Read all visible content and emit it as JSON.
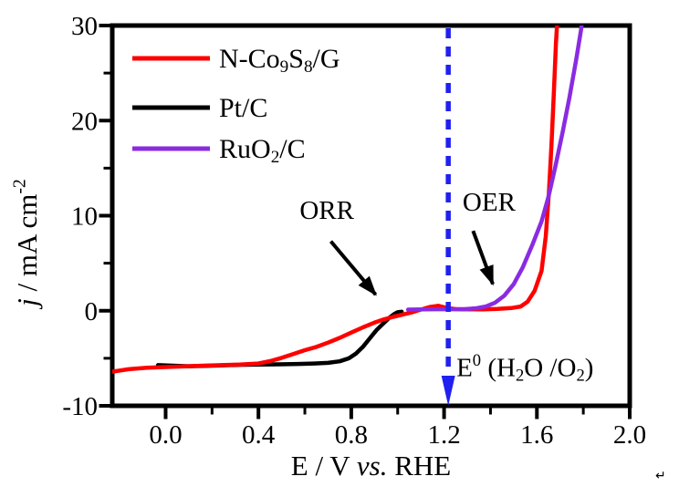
{
  "corner_mark": "↵",
  "chart_data": {
    "type": "line",
    "title": "",
    "xlabel": "E / V *vs.* RHE",
    "ylabel": "*j* / mA cm^{-2}",
    "xlim": [
      -0.23,
      2.0
    ],
    "ylim": [
      -10,
      30
    ],
    "x_major_ticks": [
      0.0,
      0.4,
      0.8,
      1.2,
      1.6,
      2.0
    ],
    "x_tick_labels": [
      "0.0",
      "0.4",
      "0.8",
      "1.2",
      "1.6",
      "2.0"
    ],
    "x_minor_ticks": [
      0.2,
      0.6,
      1.0,
      1.4,
      1.8
    ],
    "y_major_ticks": [
      30,
      20,
      10,
      0,
      -10
    ],
    "y_tick_labels": [
      "30",
      "20",
      "10",
      "0",
      "-10"
    ],
    "y_minor_ticks": [
      25,
      15,
      5,
      -5
    ],
    "grid": false,
    "frame": true,
    "axis_color": "#000000",
    "legend_position": "top-left-inside",
    "series": [
      {
        "name": "Pt/C",
        "color": "#000000",
        "points": [
          [
            -0.033,
            -5.72
          ],
          [
            0.03,
            -5.78
          ],
          [
            0.1,
            -5.84
          ],
          [
            0.17,
            -5.8
          ],
          [
            0.25,
            -5.74
          ],
          [
            0.33,
            -5.68
          ],
          [
            0.41,
            -5.66
          ],
          [
            0.49,
            -5.64
          ],
          [
            0.57,
            -5.6
          ],
          [
            0.64,
            -5.55
          ],
          [
            0.7,
            -5.48
          ],
          [
            0.75,
            -5.32
          ],
          [
            0.79,
            -5.0
          ],
          [
            0.82,
            -4.5
          ],
          [
            0.85,
            -3.8
          ],
          [
            0.88,
            -2.9
          ],
          [
            0.91,
            -2.0
          ],
          [
            0.94,
            -1.3
          ],
          [
            0.965,
            -0.72
          ],
          [
            0.985,
            -0.35
          ],
          [
            1.0,
            -0.16
          ],
          [
            1.017,
            -0.1
          ]
        ]
      },
      {
        "name": "N-Co_{9}S_{8}/G",
        "color": "#ff0000",
        "points": [
          [
            -0.228,
            -6.4
          ],
          [
            -0.16,
            -6.15
          ],
          [
            -0.08,
            -6.0
          ],
          [
            0.0,
            -5.92
          ],
          [
            0.08,
            -5.85
          ],
          [
            0.16,
            -5.78
          ],
          [
            0.24,
            -5.72
          ],
          [
            0.32,
            -5.66
          ],
          [
            0.4,
            -5.55
          ],
          [
            0.45,
            -5.3
          ],
          [
            0.5,
            -4.95
          ],
          [
            0.55,
            -4.55
          ],
          [
            0.6,
            -4.15
          ],
          [
            0.65,
            -3.8
          ],
          [
            0.7,
            -3.35
          ],
          [
            0.75,
            -2.85
          ],
          [
            0.8,
            -2.3
          ],
          [
            0.85,
            -1.75
          ],
          [
            0.9,
            -1.25
          ],
          [
            0.94,
            -0.92
          ],
          [
            0.98,
            -0.65
          ],
          [
            1.02,
            -0.42
          ],
          [
            1.06,
            -0.18
          ],
          [
            1.1,
            0.12
          ],
          [
            1.14,
            0.4
          ],
          [
            1.175,
            0.52
          ],
          [
            1.21,
            0.3
          ],
          [
            1.25,
            0.17
          ],
          [
            1.31,
            0.14
          ],
          [
            1.37,
            0.15
          ],
          [
            1.43,
            0.19
          ],
          [
            1.49,
            0.28
          ],
          [
            1.53,
            0.45
          ],
          [
            1.56,
            0.95
          ],
          [
            1.59,
            2.1
          ],
          [
            1.62,
            4.2
          ],
          [
            1.638,
            7.8
          ],
          [
            1.652,
            12.5
          ],
          [
            1.663,
            17.5
          ],
          [
            1.673,
            23.0
          ],
          [
            1.682,
            28.0
          ],
          [
            1.69,
            31.5
          ]
        ]
      },
      {
        "name": "RuO_{2}/C",
        "color": "#8a2be2",
        "points": [
          [
            1.045,
            0.12
          ],
          [
            1.11,
            0.14
          ],
          [
            1.17,
            0.16
          ],
          [
            1.23,
            0.16
          ],
          [
            1.29,
            0.17
          ],
          [
            1.34,
            0.26
          ],
          [
            1.38,
            0.45
          ],
          [
            1.42,
            0.85
          ],
          [
            1.46,
            1.6
          ],
          [
            1.5,
            2.8
          ],
          [
            1.54,
            4.6
          ],
          [
            1.58,
            6.9
          ],
          [
            1.62,
            9.4
          ],
          [
            1.65,
            12.0
          ],
          [
            1.68,
            15.2
          ],
          [
            1.71,
            18.7
          ],
          [
            1.74,
            22.4
          ],
          [
            1.77,
            26.5
          ],
          [
            1.79,
            29.5
          ],
          [
            1.8,
            31.5
          ]
        ]
      }
    ],
    "annotations": [
      {
        "id": "orr",
        "text": "ORR",
        "text_pos": [
          0.695,
          10.6
        ],
        "arrow": [
          [
            0.712,
            7.3
          ],
          [
            0.905,
            1.7
          ]
        ],
        "color": "#000000"
      },
      {
        "id": "oer",
        "text": "OER",
        "text_pos": [
          1.394,
          11.5
        ],
        "arrow": [
          [
            1.325,
            8.4
          ],
          [
            1.41,
            2.8
          ]
        ],
        "color": "#000000"
      }
    ],
    "reference_line": {
      "E": 1.218,
      "style": "dashed",
      "color": "#2020f0",
      "label": "E^{0} (H_{2}O /O_{2})",
      "label_pos": [
        1.253,
        -6.9
      ]
    }
  }
}
